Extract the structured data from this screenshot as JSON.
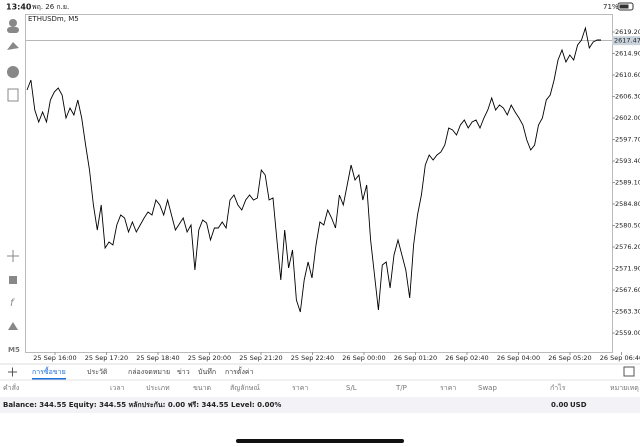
{
  "status_bar": {
    "time": "13:40",
    "date": "พฤ. 26 ก.ย.",
    "battery": "71%"
  },
  "chart": {
    "type": "line",
    "symbol": "ETHUSDm, M5",
    "color": "#000000",
    "values": [
      2607.6,
      2609.6,
      2603.6,
      2601.2,
      2603.2,
      2601.2,
      2605.6,
      2607.2,
      2608.0,
      2606.6,
      2602.0,
      2604.0,
      2602.6,
      2605.6,
      2602.0,
      2596.6,
      2591.6,
      2584.6,
      2579.6,
      2584.6,
      2576.0,
      2577.2,
      2576.6,
      2580.6,
      2582.6,
      2582.0,
      2579.2,
      2581.2,
      2579.2,
      2580.6,
      2582.0,
      2583.2,
      2582.6,
      2585.6,
      2584.6,
      2582.6,
      2585.6,
      2582.6,
      2579.6,
      2580.8,
      2582.0,
      2579.2,
      2580.6,
      2571.6,
      2579.6,
      2581.6,
      2581.0,
      2577.6,
      2580.0,
      2580.0,
      2581.2,
      2580.0,
      2585.6,
      2586.6,
      2584.6,
      2583.6,
      2585.6,
      2586.6,
      2585.6,
      2586.0,
      2591.6,
      2590.6,
      2585.6,
      2586.0,
      2577.6,
      2569.6,
      2579.6,
      2572.0,
      2575.6,
      2565.6,
      2563.2,
      2569.6,
      2573.2,
      2570.0,
      2576.6,
      2581.2,
      2580.6,
      2583.6,
      2582.0,
      2580.0,
      2586.6,
      2584.6,
      2588.6,
      2592.6,
      2589.6,
      2590.6,
      2585.6,
      2588.6,
      2577.6,
      2570.6,
      2563.6,
      2572.6,
      2573.2,
      2568.0,
      2574.6,
      2577.6,
      2574.6,
      2571.6,
      2566.0,
      2576.6,
      2582.6,
      2586.6,
      2592.6,
      2594.6,
      2593.6,
      2594.6,
      2595.2,
      2596.6,
      2600.0,
      2599.6,
      2598.6,
      2600.6,
      2601.6,
      2600.0,
      2601.2,
      2601.6,
      2600.0,
      2602.0,
      2603.6,
      2606.0,
      2603.6,
      2604.6,
      2604.0,
      2602.6,
      2604.6,
      2603.2,
      2602.0,
      2600.6,
      2597.6,
      2595.6,
      2596.6,
      2600.6,
      2602.0,
      2605.6,
      2606.6,
      2609.6,
      2613.6,
      2615.6,
      2613.2,
      2614.6,
      2613.6,
      2616.6,
      2617.6,
      2620.0,
      2616.0,
      2617.2,
      2617.6,
      2617.6
    ],
    "ylim": [
      2555.2,
      2622.8
    ],
    "yticks": [
      {
        "value": 2559,
        "label": "2559.00"
      },
      {
        "value": 2563.3,
        "label": "2563.30"
      },
      {
        "value": 2567.6,
        "label": "2567.60"
      },
      {
        "value": 2571.9,
        "label": "2571.90"
      },
      {
        "value": 2576.2,
        "label": "2576.20"
      },
      {
        "value": 2580.5,
        "label": "2580.50"
      },
      {
        "value": 2584.8,
        "label": "2584.80"
      },
      {
        "value": 2589.1,
        "label": "2589.10"
      },
      {
        "value": 2593.4,
        "label": "2593.40"
      },
      {
        "value": 2597.7,
        "label": "2597.70"
      },
      {
        "value": 2602,
        "label": "2602.00"
      },
      {
        "value": 2606.3,
        "label": "2606.30"
      },
      {
        "value": 2610.6,
        "label": "2610.60"
      },
      {
        "value": 2614.9,
        "label": "2614.90"
      },
      {
        "value": 2619.2,
        "label": "2619.20"
      }
    ],
    "current_price": {
      "value": 2617.47,
      "label": "2617.47"
    },
    "x_labels": [
      "25 Sep 16:00",
      "25 Sep 17:20",
      "25 Sep 18:40",
      "25 Sep 20:00",
      "25 Sep 21:20",
      "25 Sep 22:40",
      "26 Sep 00:00",
      "26 Sep 01:20",
      "26 Sep 02:40",
      "26 Sep 04:00",
      "26 Sep 05:20",
      "26 Sep 06:40"
    ]
  },
  "timeframe": "M5",
  "tabs": [
    "การซื้อขาย",
    "ประวัติ",
    "กล่องจดหมาย",
    "ข่าว",
    "บันทึก",
    "การตั้งค่า"
  ],
  "active_tab": 0,
  "columns": [
    "คำสั่ง",
    "เวลา",
    "ประเภท",
    "ขนาด",
    "สัญลักษณ์",
    "ราคา",
    "S/L",
    "T/P",
    "ราคา",
    "Swap",
    "กำไร",
    "หมายเหตุ"
  ],
  "account": {
    "summary": "Balance: 344.55 Equity: 344.55 หลักประกัน: 0.00 ฟรี: 344.55 Level: 0.00%",
    "total": "0.00",
    "currency": "USD"
  }
}
